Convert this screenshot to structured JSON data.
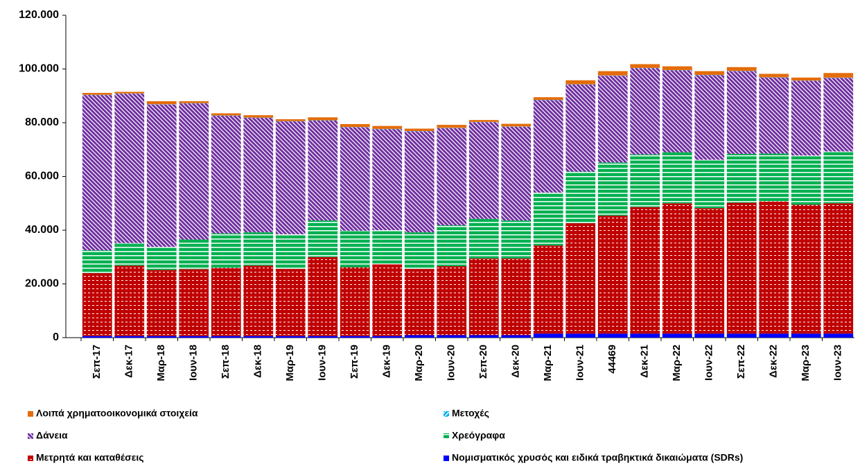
{
  "chart_data": {
    "type": "stacked_bar",
    "categories": [
      "Σεπ-17",
      "Δεκ-17",
      "Μαρ-18",
      "Ιουν-18",
      "Σεπ-18",
      "Δεκ-18",
      "Μαρ-19",
      "Ιουν-19",
      "Σεπ-19",
      "Δεκ-19",
      "Μαρ-20",
      "Ιουν-20",
      "Σεπ-20",
      "Δεκ-20",
      "Μαρ-21",
      "Ιουν-21",
      "44469",
      "Δεκ-21",
      "Μαρ-22",
      "Ιουν-22",
      "Σεπ-22",
      "Δεκ-22",
      "Μαρ-23",
      "Ιουν-23"
    ],
    "series": [
      {
        "name": "Λοιπά χρηματοοικονομικά στοιχεία",
        "color": "#e46c0a",
        "values": [
          700,
          600,
          1100,
          700,
          800,
          900,
          700,
          1100,
          1100,
          1100,
          900,
          1100,
          700,
          1000,
          1000,
          1500,
          1600,
          1400,
          1400,
          1400,
          1400,
          1300,
          1100,
          1700
        ]
      },
      {
        "name": "Μετοχές",
        "color": "#00b0f0",
        "values": [
          100,
          100,
          100,
          100,
          100,
          100,
          100,
          100,
          100,
          100,
          100,
          100,
          100,
          100,
          100,
          100,
          100,
          100,
          100,
          100,
          100,
          100,
          100,
          100
        ]
      },
      {
        "name": "Δάνεια",
        "color": "#7030a0",
        "values": [
          57800,
          55600,
          53000,
          50700,
          43800,
          42600,
          42000,
          37200,
          38500,
          37600,
          37600,
          36200,
          36000,
          34900,
          34400,
          32400,
          32300,
          32100,
          30500,
          31500,
          30800,
          28300,
          27800,
          27400
        ]
      },
      {
        "name": "Χρεόγραφα",
        "color": "#00b050",
        "values": [
          8500,
          8400,
          8600,
          11000,
          12800,
          12400,
          12900,
          13600,
          13600,
          12700,
          13600,
          15200,
          14700,
          14100,
          19700,
          19200,
          19800,
          19600,
          19000,
          18000,
          18200,
          17800,
          18300,
          19300
        ]
      },
      {
        "name": "Μετρητά και καταθέσεις",
        "color": "#c00000",
        "values": [
          23400,
          26200,
          24600,
          24900,
          25400,
          26200,
          25000,
          29400,
          25600,
          26700,
          24700,
          25700,
          28600,
          28600,
          32800,
          41100,
          43900,
          47100,
          48500,
          46700,
          48700,
          49200,
          48000,
          48500
        ]
      },
      {
        "name": "Νομισματικός χρυσός και ειδικά τραβηκτικά  δικαιώματα (SDRs)",
        "color": "#0000ff",
        "values": [
          600,
          600,
          600,
          600,
          600,
          600,
          600,
          600,
          600,
          600,
          900,
          900,
          900,
          900,
          1500,
          1500,
          1500,
          1500,
          1500,
          1500,
          1500,
          1500,
          1500,
          1500
        ]
      }
    ],
    "ylim": [
      0,
      120000
    ],
    "yticks": [
      {
        "value": 0,
        "label": "0"
      },
      {
        "value": 20000,
        "label": "20.000"
      },
      {
        "value": 40000,
        "label": "40.000"
      },
      {
        "value": 60000,
        "label": "60.000"
      },
      {
        "value": 80000,
        "label": "80.000"
      },
      {
        "value": 100000,
        "label": "100.000"
      },
      {
        "value": 120000,
        "label": "120.000"
      }
    ]
  }
}
